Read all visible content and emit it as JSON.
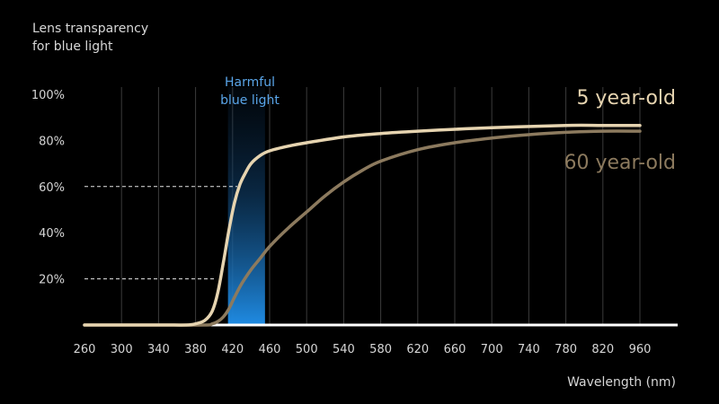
{
  "chart_data": {
    "type": "line",
    "title": "",
    "ylabel_lines": [
      "Lens transparency",
      "for blue light"
    ],
    "xlabel": "Wavelength (nm)",
    "x_ticks": [
      "260",
      "300",
      "340",
      "380",
      "420",
      "460",
      "500",
      "540",
      "580",
      "620",
      "660",
      "700",
      "740",
      "780",
      "820",
      "960"
    ],
    "y_ticks": [
      "100%",
      "80%",
      "60%",
      "40%",
      "20%"
    ],
    "ylim": [
      0,
      100
    ],
    "grid": "vertical",
    "annotation": {
      "lines": [
        "Harmful",
        "blue light"
      ],
      "x_range": [
        415,
        455
      ]
    },
    "guides": [
      {
        "y": 60,
        "x_end": 425
      },
      {
        "y": 20,
        "x_end": 400
      }
    ],
    "series": [
      {
        "name": "5 year-old",
        "color": "#e6d4b0",
        "x": [
          260,
          340,
          370,
          380,
          390,
          398,
          404,
          410,
          416,
          422,
          428,
          434,
          440,
          450,
          460,
          480,
          500,
          540,
          580,
          620,
          700,
          780,
          820,
          960
        ],
        "y": [
          0,
          0,
          0,
          0.5,
          2,
          6,
          14,
          27,
          41,
          53,
          61,
          66,
          70,
          73.5,
          75.5,
          77.5,
          79,
          81.5,
          83,
          84,
          85.5,
          86.5,
          86.5,
          86.5
        ]
      },
      {
        "name": "60 year-old",
        "color": "#8c7a5e",
        "x": [
          260,
          340,
          390,
          398,
          404,
          410,
          416,
          422,
          430,
          440,
          450,
          460,
          480,
          500,
          520,
          540,
          560,
          580,
          620,
          660,
          700,
          740,
          780,
          820,
          960
        ],
        "y": [
          0,
          0,
          0,
          0.5,
          1.5,
          3.5,
          7,
          12,
          18,
          24,
          29,
          34,
          42,
          49,
          56,
          62,
          67,
          71,
          76,
          79,
          81,
          82.5,
          83.5,
          84,
          84
        ]
      }
    ]
  }
}
